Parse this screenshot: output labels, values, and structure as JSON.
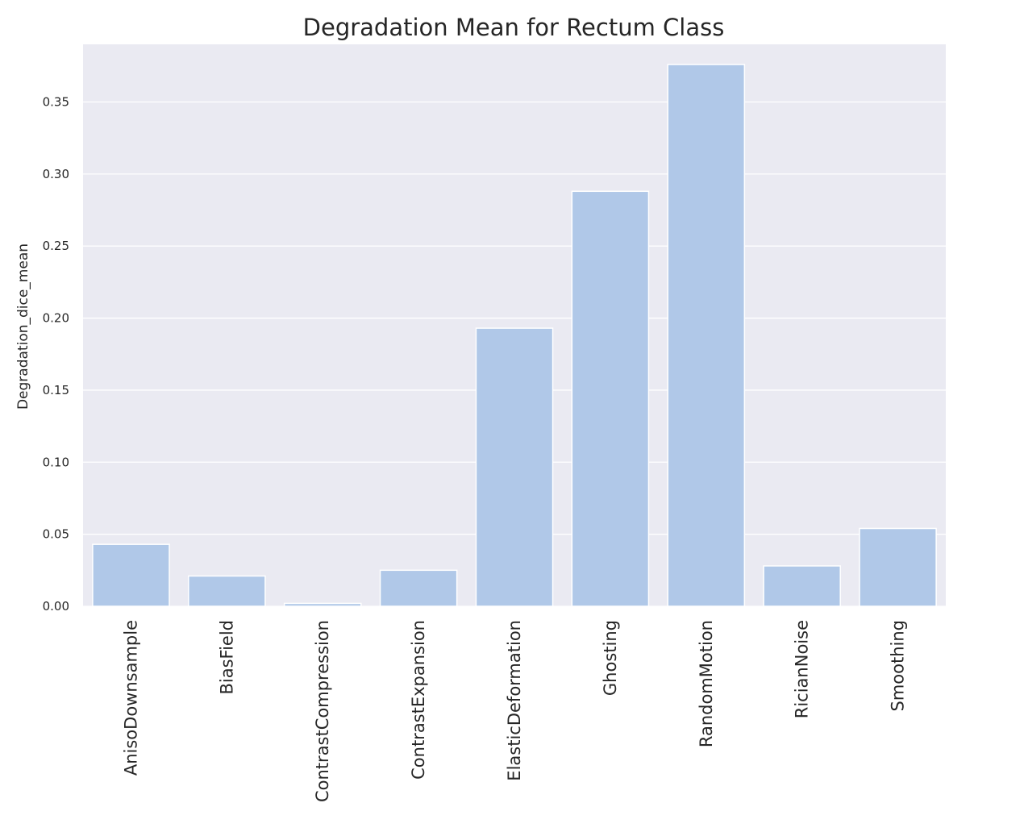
{
  "chart_data": {
    "type": "bar",
    "title": "Degradation Mean for Rectum Class",
    "xlabel": "",
    "ylabel": "Degradation_dice_mean",
    "categories": [
      "AnisoDownsample",
      "BiasField",
      "ContrastCompression",
      "ContrastExpansion",
      "ElasticDeformation",
      "Ghosting",
      "RandomMotion",
      "RicianNoise",
      "Smoothing"
    ],
    "values": [
      0.043,
      0.021,
      0.002,
      0.025,
      0.193,
      0.288,
      0.376,
      0.028,
      0.054
    ],
    "ylim": [
      0,
      0.39
    ],
    "yticks": [
      0.0,
      0.05,
      0.1,
      0.15,
      0.2,
      0.25,
      0.3,
      0.35
    ],
    "ytick_labels": [
      "0.00",
      "0.05",
      "0.10",
      "0.15",
      "0.20",
      "0.25",
      "0.30",
      "0.35"
    ],
    "grid": true,
    "colors": {
      "bar": "#b0c8e8",
      "background": "#eaeaf2",
      "grid": "#ffffff",
      "text": "#262626"
    }
  }
}
